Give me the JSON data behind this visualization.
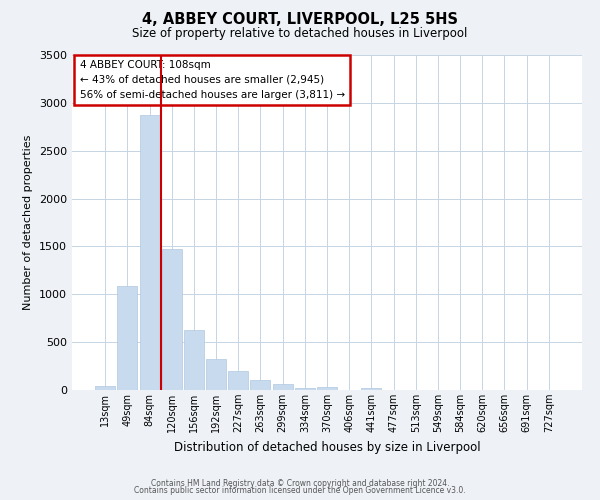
{
  "title": "4, ABBEY COURT, LIVERPOOL, L25 5HS",
  "subtitle": "Size of property relative to detached houses in Liverpool",
  "xlabel": "Distribution of detached houses by size in Liverpool",
  "ylabel": "Number of detached properties",
  "bar_labels": [
    "13sqm",
    "49sqm",
    "84sqm",
    "120sqm",
    "156sqm",
    "192sqm",
    "227sqm",
    "263sqm",
    "299sqm",
    "334sqm",
    "370sqm",
    "406sqm",
    "441sqm",
    "477sqm",
    "513sqm",
    "549sqm",
    "584sqm",
    "620sqm",
    "656sqm",
    "691sqm",
    "727sqm"
  ],
  "bar_values": [
    40,
    1090,
    2870,
    1470,
    630,
    325,
    195,
    105,
    65,
    20,
    35,
    5,
    20,
    0,
    0,
    0,
    0,
    0,
    0,
    0,
    0
  ],
  "bar_color": "#c8daed",
  "bar_edge_color": "#b0c8e0",
  "vline_x_index": 2.5,
  "vline_color": "#cc0000",
  "ylim": [
    0,
    3500
  ],
  "yticks": [
    0,
    500,
    1000,
    1500,
    2000,
    2500,
    3000,
    3500
  ],
  "annotation_title": "4 ABBEY COURT: 108sqm",
  "annotation_line1": "← 43% of detached houses are smaller (2,945)",
  "annotation_line2": "56% of semi-detached houses are larger (3,811) →",
  "annotation_box_edgecolor": "#cc0000",
  "footer1": "Contains HM Land Registry data © Crown copyright and database right 2024.",
  "footer2": "Contains public sector information licensed under the Open Government Licence v3.0.",
  "bg_color": "#eef2f7",
  "plot_bg_color": "#ffffff",
  "grid_color": "#c5d5e5"
}
